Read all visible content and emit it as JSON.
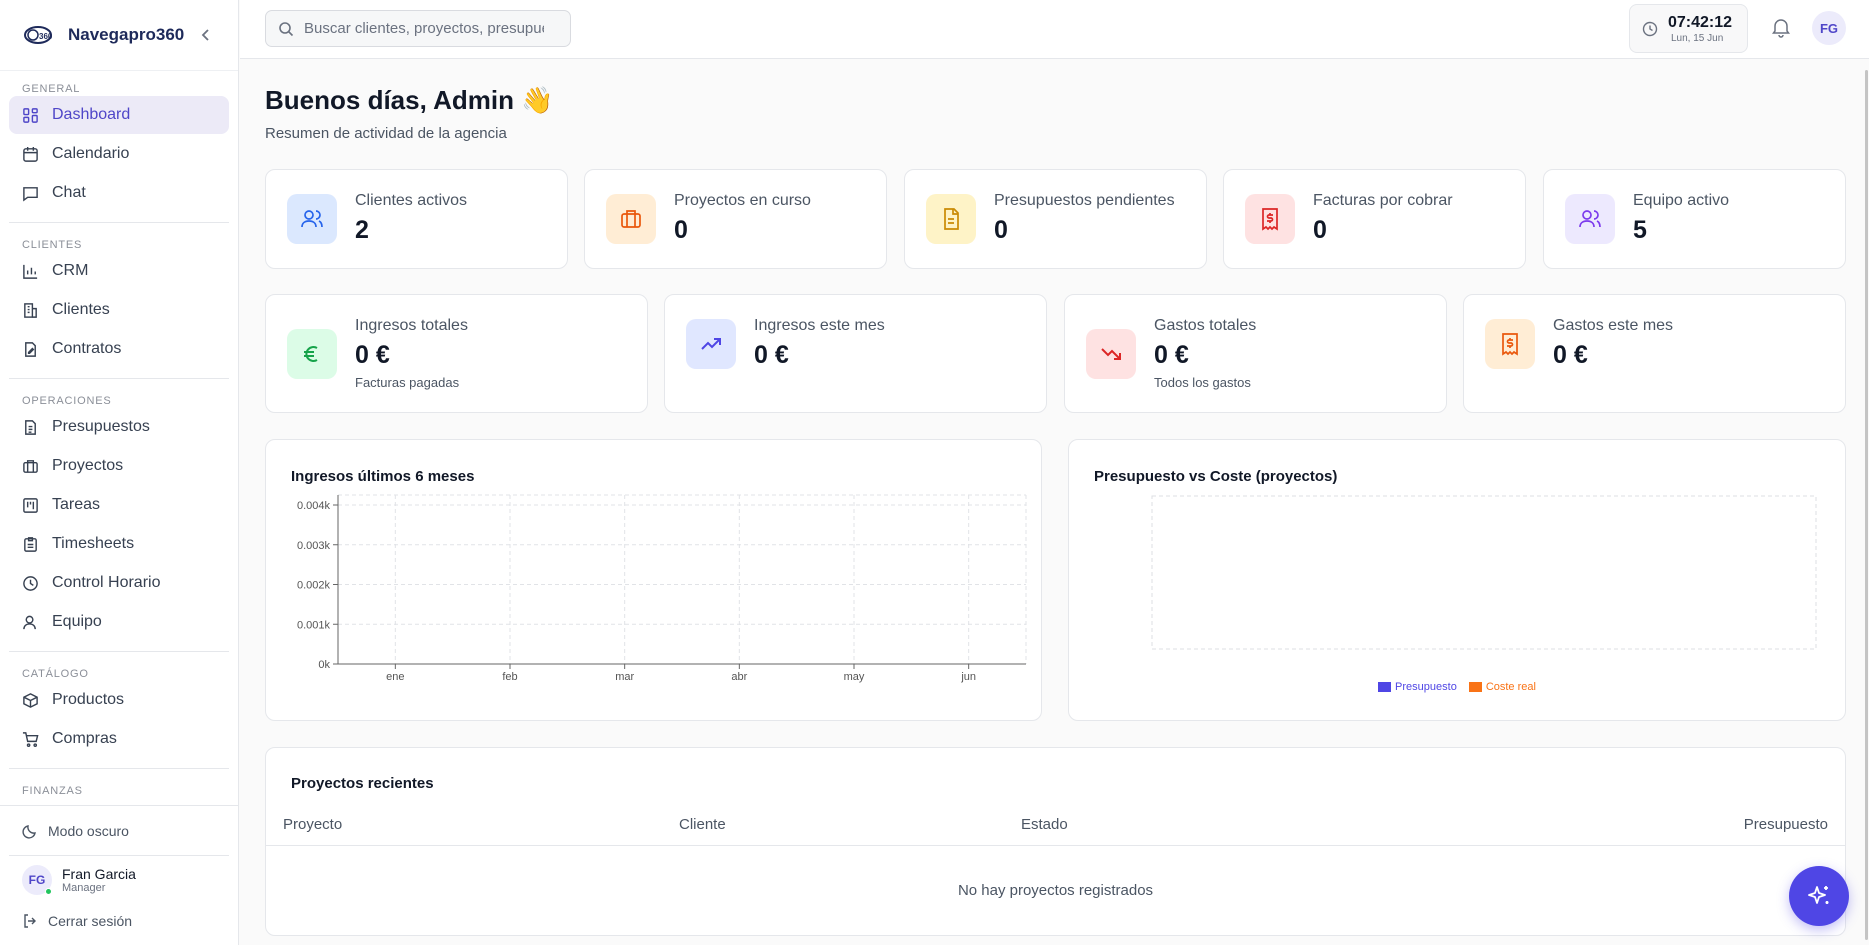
{
  "app": {
    "name": "Navegapro360"
  },
  "search": {
    "placeholder": "Buscar clientes, proyectos, presupuestos..."
  },
  "clock": {
    "time": "07:42:12",
    "date": "Lun, 15 Jun"
  },
  "topbar": {
    "avatar": "FG"
  },
  "sidebar": {
    "sections": {
      "general": "GENERAL",
      "clientes": "CLIENTES",
      "operaciones": "OPERACIONES",
      "catalogo": "CATÁLOGO",
      "finanzas": "FINANZAS"
    },
    "items": {
      "dashboard": "Dashboard",
      "calendario": "Calendario",
      "chat": "Chat",
      "crm": "CRM",
      "clientes": "Clientes",
      "contratos": "Contratos",
      "presupuestos": "Presupuestos",
      "proyectos": "Proyectos",
      "tareas": "Tareas",
      "timesheets": "Timesheets",
      "control_horario": "Control Horario",
      "equipo": "Equipo",
      "productos": "Productos",
      "compras": "Compras"
    },
    "dark_mode": "Modo oscuro",
    "user": {
      "initials": "FG",
      "name": "Fran Garcia",
      "role": "Manager"
    },
    "logout": "Cerrar sesión"
  },
  "header": {
    "greeting": "Buenos días, Admin 👋",
    "subtitle": "Resumen de actividad de la agencia"
  },
  "stats_row1": [
    {
      "label": "Clientes activos",
      "value": "2",
      "color": "#2563eb",
      "bg": "#dbe8fe"
    },
    {
      "label": "Proyectos en curso",
      "value": "0",
      "color": "#ea580c",
      "bg": "#ffedd5"
    },
    {
      "label": "Presupuestos pendientes",
      "value": "0",
      "color": "#ca8a04",
      "bg": "#fef3c7"
    },
    {
      "label": "Facturas por cobrar",
      "value": "0",
      "color": "#dc2626",
      "bg": "#fee2e2"
    },
    {
      "label": "Equipo activo",
      "value": "5",
      "color": "#7c3aed",
      "bg": "#ede9fe"
    }
  ],
  "stats_row2": [
    {
      "label": "Ingresos totales",
      "value": "0 €",
      "note": "Facturas pagadas",
      "color": "#16a34a",
      "bg": "#dcfce7"
    },
    {
      "label": "Ingresos este mes",
      "value": "0 €",
      "note": "",
      "color": "#4f46e5",
      "bg": "#e0e7ff"
    },
    {
      "label": "Gastos totales",
      "value": "0 €",
      "note": "Todos los gastos",
      "color": "#dc2626",
      "bg": "#fee2e2"
    },
    {
      "label": "Gastos este mes",
      "value": "0 €",
      "note": "",
      "color": "#ea580c",
      "bg": "#ffedd5"
    }
  ],
  "chart_data": [
    {
      "type": "line",
      "title": "Ingresos últimos 6 meses",
      "xlabel": "",
      "ylabel": "",
      "categories": [
        "ene",
        "feb",
        "mar",
        "abr",
        "may",
        "jun"
      ],
      "yticks": [
        "0k",
        "0.001k",
        "0.002k",
        "0.003k",
        "0.004k"
      ],
      "ylim": [
        0,
        0.004
      ],
      "series": [],
      "grid": true
    },
    {
      "type": "bar",
      "title": "Presupuesto vs Coste (proyectos)",
      "categories": [],
      "series": [
        {
          "name": "Presupuesto",
          "values": [],
          "color": "#4f46e5"
        },
        {
          "name": "Coste real",
          "values": [],
          "color": "#f97316"
        }
      ],
      "legend": "bottom",
      "grid": true
    }
  ],
  "recent_projects": {
    "title": "Proyectos recientes",
    "columns": [
      "Proyecto",
      "Cliente",
      "Estado",
      "Presupuesto"
    ],
    "rows": [],
    "empty": "No hay proyectos registrados"
  }
}
